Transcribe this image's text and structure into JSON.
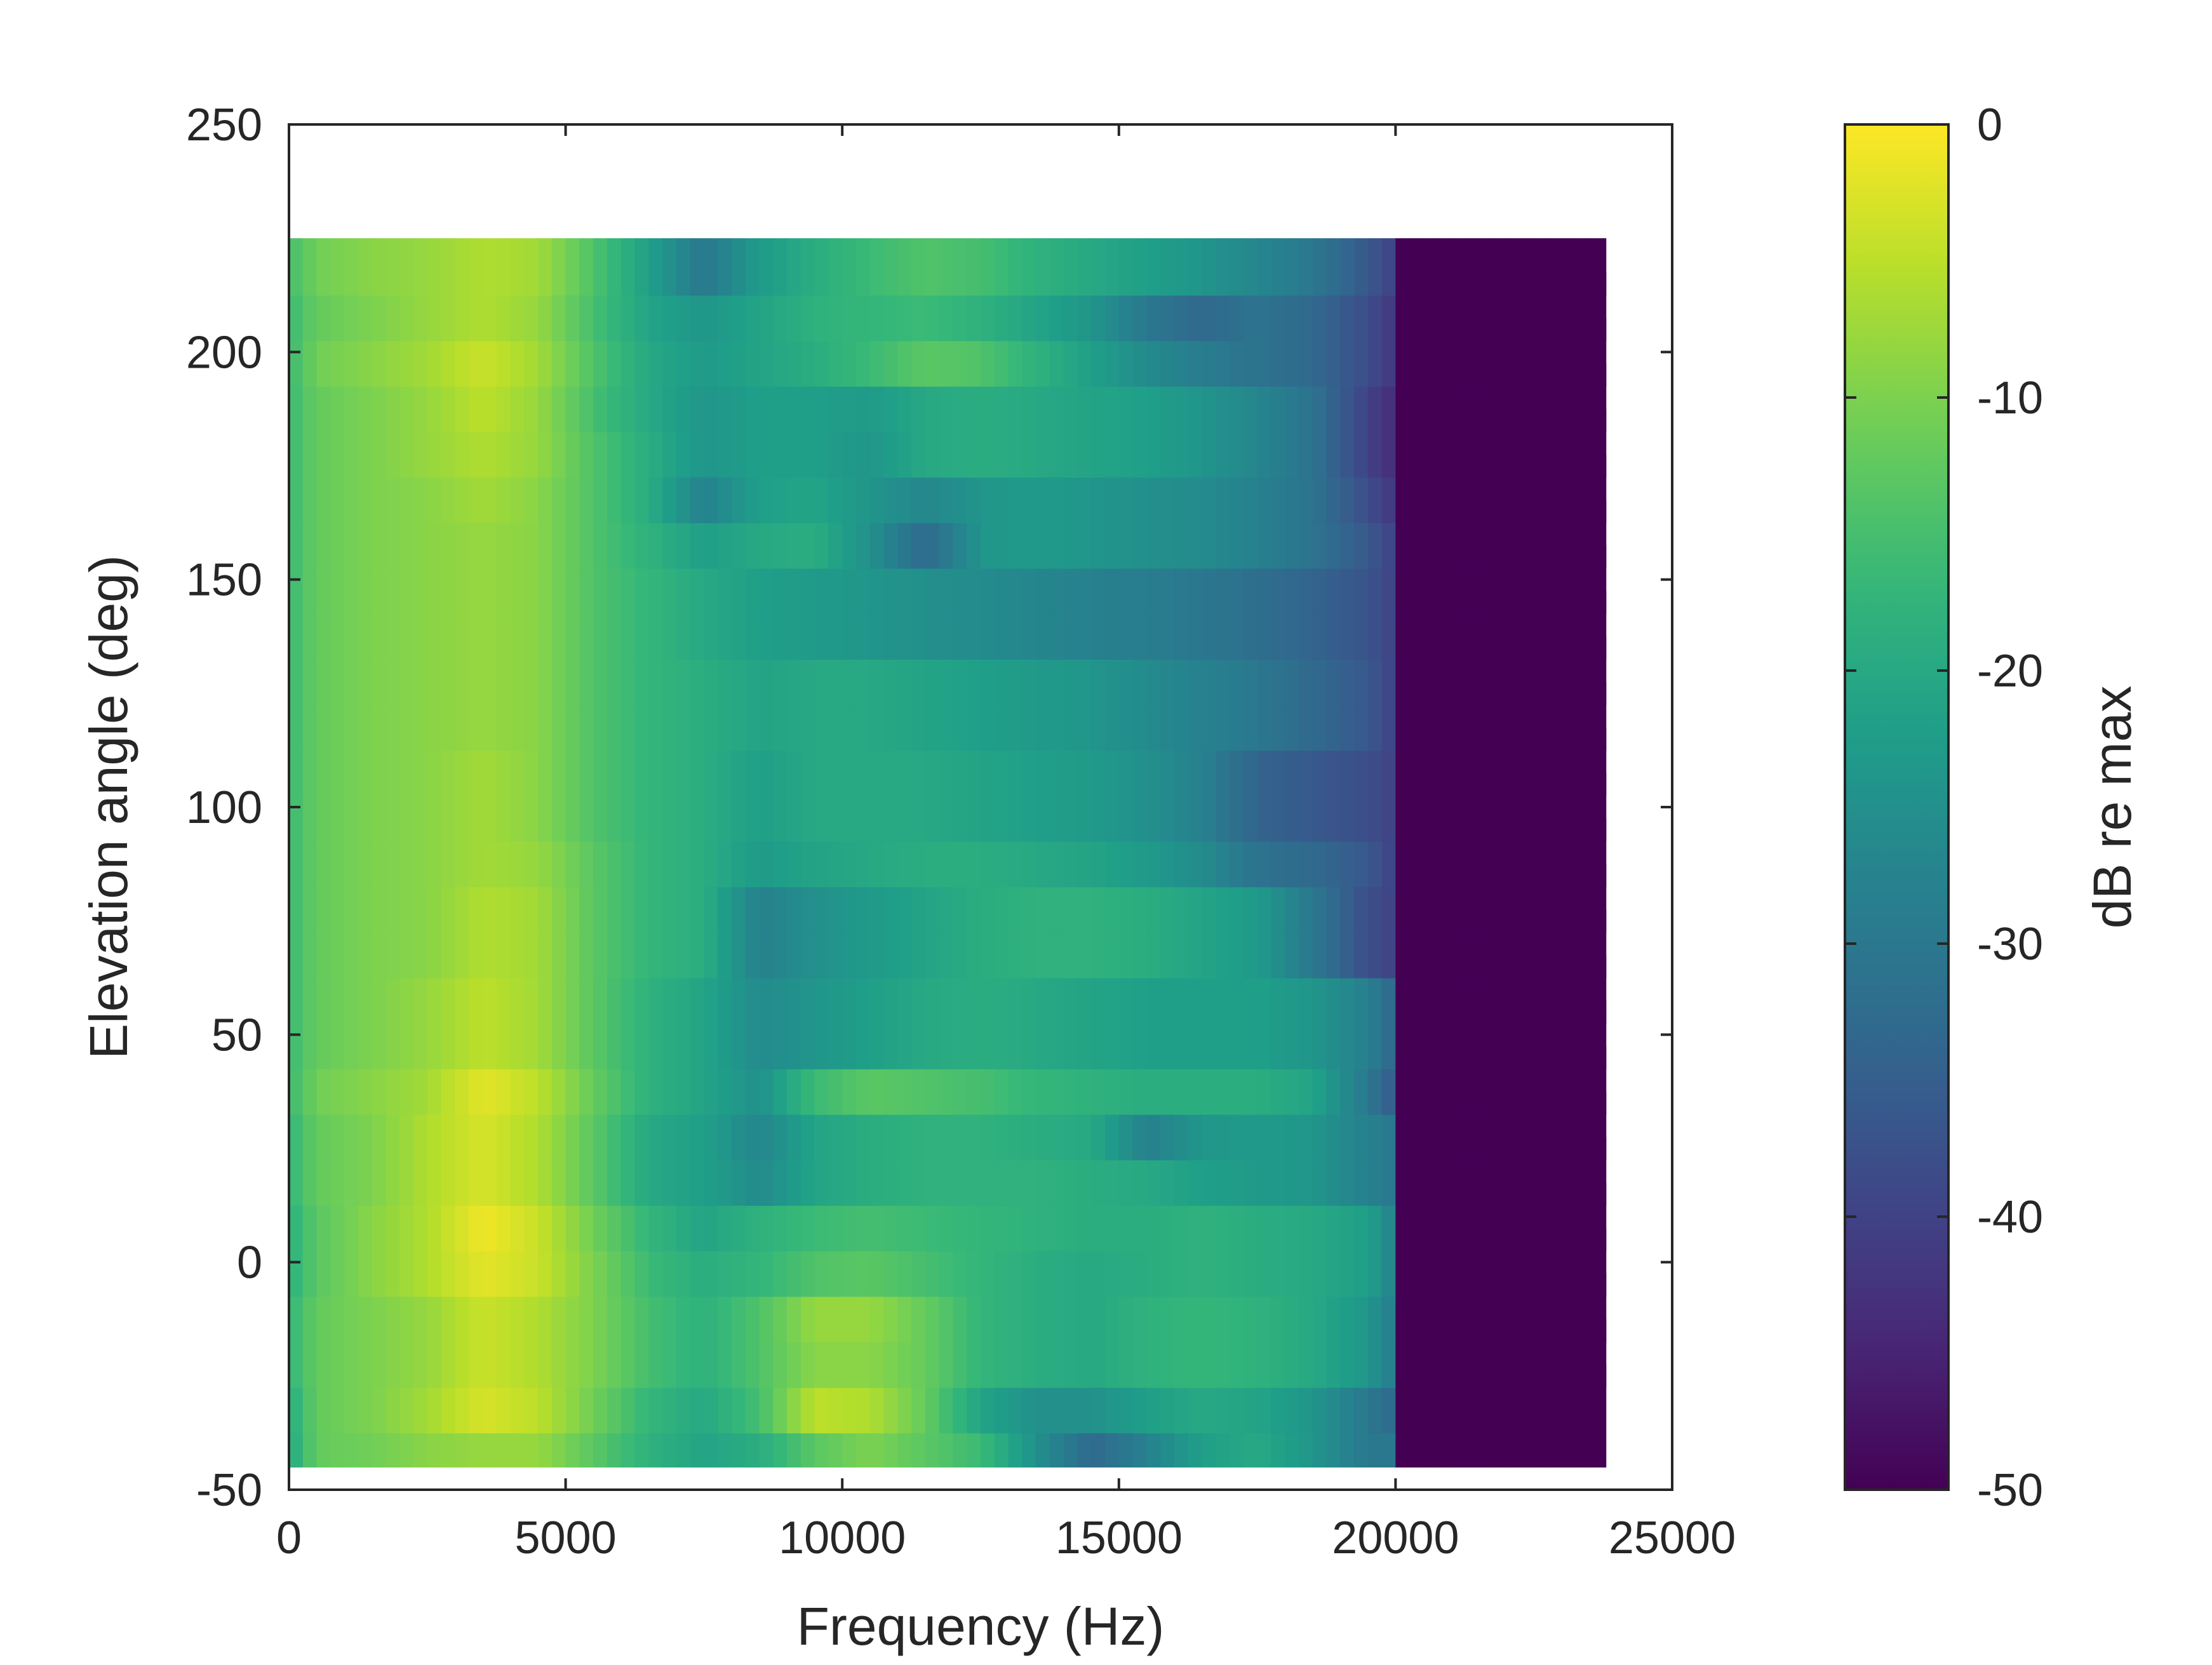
{
  "chart_data": {
    "type": "heatmap",
    "title": "",
    "xlabel": "Frequency (Hz)",
    "ylabel": "Elevation angle (deg)",
    "xlim": [
      0,
      25000
    ],
    "ylim": [
      -50,
      250
    ],
    "xticks": [
      0,
      5000,
      10000,
      15000,
      20000,
      25000
    ],
    "xtick_labels": [
      "0",
      "5000",
      "10000",
      "15000",
      "20000",
      "25000"
    ],
    "yticks": [
      -50,
      0,
      50,
      100,
      150,
      200,
      250
    ],
    "ytick_labels": [
      "-50",
      "0",
      "50",
      "100",
      "150",
      "200",
      "250"
    ],
    "colormap": "viridis",
    "colorbar": {
      "label": "dB re max",
      "clim": [
        -50,
        0
      ],
      "ticks": [
        -50,
        -40,
        -30,
        -20,
        -10,
        0
      ],
      "tick_labels": [
        "-50",
        "-40",
        "-30",
        "-20",
        "-10",
        "0"
      ]
    },
    "data_extent": {
      "x": [
        0,
        23800
      ],
      "y": [
        -45,
        225
      ]
    },
    "grid": false,
    "frequency_knots_hz": [
      0,
      500,
      1500,
      2500,
      3500,
      4500,
      5500,
      6500,
      7500,
      8500,
      9500,
      10500,
      11500,
      12500,
      13500,
      14500,
      15500,
      16500,
      17500,
      18500,
      19500,
      20000,
      20100
    ],
    "rows": [
      {
        "elevation_deg": -45,
        "db": [
          -20,
          -12,
          -11,
          -9,
          -8,
          -8,
          -13,
          -18,
          -21,
          -19,
          -13,
          -10,
          -13,
          -16,
          -25,
          -33,
          -28,
          -22,
          -20,
          -24,
          -30,
          -30,
          -50
        ]
      },
      {
        "elevation_deg": -30,
        "db": [
          -19,
          -12,
          -10,
          -7,
          -3,
          -5,
          -11,
          -17,
          -20,
          -15,
          -5,
          -6,
          -12,
          -21,
          -25,
          -25,
          -22,
          -20,
          -21,
          -24,
          -30,
          -33,
          -50
        ]
      },
      {
        "elevation_deg": -20,
        "db": [
          -17,
          -12,
          -10,
          -8,
          -4,
          -6,
          -10,
          -15,
          -18,
          -14,
          -9,
          -9,
          -12,
          -17,
          -19,
          -20,
          -18,
          -17,
          -18,
          -20,
          -24,
          -29,
          -50
        ]
      },
      {
        "elevation_deg": -10,
        "db": [
          -17,
          -12,
          -10,
          -8,
          -4,
          -6,
          -10,
          -15,
          -18,
          -14,
          -8,
          -8,
          -12,
          -17,
          -19,
          -20,
          -18,
          -17,
          -18,
          -20,
          -24,
          -29,
          -50
        ]
      },
      {
        "elevation_deg": 0,
        "db": [
          -18,
          -13,
          -9,
          -6,
          -2,
          -4,
          -10,
          -16,
          -19,
          -17,
          -14,
          -13,
          -15,
          -17,
          -19,
          -20,
          -19,
          -18,
          -19,
          -20,
          -22,
          -28,
          -50
        ]
      },
      {
        "elevation_deg": 10,
        "db": [
          -18,
          -13,
          -9,
          -6,
          -1,
          -4,
          -11,
          -17,
          -21,
          -18,
          -16,
          -15,
          -16,
          -17,
          -18,
          -19,
          -19,
          -18,
          -19,
          -20,
          -22,
          -28,
          -50
        ]
      },
      {
        "elevation_deg": 20,
        "db": [
          -17,
          -12,
          -10,
          -6,
          -3,
          -6,
          -13,
          -20,
          -22,
          -26,
          -21,
          -19,
          -18,
          -18,
          -18,
          -19,
          -20,
          -22,
          -23,
          -24,
          -28,
          -30,
          -50
        ]
      },
      {
        "elevation_deg": 30,
        "db": [
          -17,
          -12,
          -10,
          -6,
          -3,
          -6,
          -13,
          -20,
          -22,
          -27,
          -21,
          -19,
          -18,
          -18,
          -19,
          -20,
          -28,
          -24,
          -23,
          -24,
          -28,
          -30,
          -50
        ]
      },
      {
        "elevation_deg": 40,
        "db": [
          -16,
          -11,
          -9,
          -7,
          -2,
          -5,
          -12,
          -18,
          -21,
          -25,
          -16,
          -13,
          -14,
          -15,
          -17,
          -18,
          -19,
          -19,
          -19,
          -21,
          -30,
          -36,
          -50
        ]
      },
      {
        "elevation_deg": 50,
        "db": [
          -16,
          -12,
          -10,
          -8,
          -5,
          -7,
          -13,
          -18,
          -21,
          -26,
          -24,
          -22,
          -20,
          -19,
          -20,
          -21,
          -22,
          -22,
          -22,
          -24,
          -28,
          -34,
          -50
        ]
      },
      {
        "elevation_deg": 60,
        "db": [
          -16,
          -12,
          -10,
          -8,
          -5,
          -7,
          -13,
          -18,
          -21,
          -26,
          -24,
          -22,
          -20,
          -19,
          -20,
          -21,
          -22,
          -22,
          -22,
          -24,
          -28,
          -34,
          -50
        ]
      },
      {
        "elevation_deg": 70,
        "db": [
          -16,
          -12,
          -10,
          -9,
          -6,
          -7,
          -13,
          -17,
          -19,
          -28,
          -25,
          -23,
          -21,
          -19,
          -18,
          -18,
          -19,
          -21,
          -23,
          -30,
          -38,
          -40,
          -50
        ]
      },
      {
        "elevation_deg": 80,
        "db": [
          -16,
          -12,
          -10,
          -9,
          -6,
          -7,
          -13,
          -17,
          -19,
          -28,
          -25,
          -23,
          -21,
          -19,
          -18,
          -18,
          -19,
          -21,
          -23,
          -30,
          -38,
          -40,
          -50
        ]
      },
      {
        "elevation_deg": 90,
        "db": [
          -16,
          -12,
          -10,
          -9,
          -7,
          -8,
          -13,
          -17,
          -19,
          -23,
          -21,
          -20,
          -19,
          -19,
          -20,
          -21,
          -23,
          -26,
          -31,
          -33,
          -36,
          -40,
          -50
        ]
      },
      {
        "elevation_deg": 100,
        "db": [
          -16,
          -12,
          -10,
          -9,
          -7,
          -9,
          -14,
          -17,
          -19,
          -22,
          -20,
          -20,
          -20,
          -21,
          -22,
          -23,
          -25,
          -28,
          -34,
          -36,
          -38,
          -40,
          -50
        ]
      },
      {
        "elevation_deg": 110,
        "db": [
          -16,
          -12,
          -10,
          -9,
          -7,
          -9,
          -14,
          -17,
          -19,
          -22,
          -20,
          -20,
          -20,
          -21,
          -22,
          -23,
          -25,
          -28,
          -34,
          -36,
          -38,
          -40,
          -50
        ]
      },
      {
        "elevation_deg": 120,
        "db": [
          -16,
          -12,
          -10,
          -9,
          -8,
          -9,
          -14,
          -17,
          -19,
          -21,
          -20,
          -20,
          -21,
          -22,
          -23,
          -24,
          -26,
          -28,
          -30,
          -33,
          -36,
          -40,
          -50
        ]
      },
      {
        "elevation_deg": 130,
        "db": [
          -16,
          -12,
          -10,
          -9,
          -8,
          -9,
          -14,
          -17,
          -19,
          -21,
          -20,
          -20,
          -21,
          -22,
          -23,
          -24,
          -26,
          -28,
          -30,
          -33,
          -36,
          -40,
          -50
        ]
      },
      {
        "elevation_deg": 140,
        "db": [
          -16,
          -12,
          -10,
          -9,
          -8,
          -9,
          -14,
          -17,
          -20,
          -22,
          -23,
          -24,
          -25,
          -26,
          -27,
          -28,
          -29,
          -30,
          -32,
          -34,
          -37,
          -40,
          -50
        ]
      },
      {
        "elevation_deg": 150,
        "db": [
          -16,
          -12,
          -10,
          -9,
          -8,
          -9,
          -14,
          -17,
          -20,
          -22,
          -23,
          -24,
          -25,
          -26,
          -27,
          -28,
          -29,
          -30,
          -32,
          -34,
          -37,
          -40,
          -50
        ]
      },
      {
        "elevation_deg": 160,
        "db": [
          -16,
          -12,
          -10,
          -9,
          -8,
          -9,
          -14,
          -18,
          -22,
          -20,
          -19,
          -25,
          -33,
          -24,
          -23,
          -24,
          -25,
          -26,
          -28,
          -31,
          -36,
          -40,
          -50
        ]
      },
      {
        "elevation_deg": 170,
        "db": [
          -16,
          -12,
          -10,
          -9,
          -7,
          -9,
          -14,
          -19,
          -28,
          -22,
          -21,
          -24,
          -27,
          -24,
          -23,
          -24,
          -25,
          -26,
          -28,
          -31,
          -38,
          -42,
          -50
        ]
      },
      {
        "elevation_deg": 180,
        "db": [
          -16,
          -12,
          -10,
          -8,
          -6,
          -8,
          -14,
          -19,
          -24,
          -22,
          -22,
          -24,
          -20,
          -19,
          -20,
          -21,
          -22,
          -24,
          -27,
          -31,
          -40,
          -44,
          -50
        ]
      },
      {
        "elevation_deg": 190,
        "db": [
          -16,
          -12,
          -10,
          -8,
          -5,
          -8,
          -15,
          -20,
          -24,
          -22,
          -22,
          -23,
          -20,
          -19,
          -20,
          -21,
          -22,
          -24,
          -27,
          -31,
          -40,
          -44,
          -50
        ]
      },
      {
        "elevation_deg": 200,
        "db": [
          -16,
          -11,
          -9,
          -7,
          -4,
          -7,
          -14,
          -20,
          -23,
          -21,
          -19,
          -16,
          -13,
          -14,
          -18,
          -22,
          -26,
          -29,
          -31,
          -33,
          -38,
          -42,
          -50
        ]
      },
      {
        "elevation_deg": 210,
        "db": [
          -16,
          -12,
          -10,
          -8,
          -6,
          -8,
          -15,
          -21,
          -24,
          -21,
          -18,
          -17,
          -16,
          -18,
          -21,
          -24,
          -30,
          -33,
          -31,
          -33,
          -38,
          -42,
          -50
        ]
      },
      {
        "elevation_deg": 220,
        "db": [
          -15,
          -11,
          -9,
          -8,
          -6,
          -7,
          -14,
          -22,
          -30,
          -23,
          -19,
          -16,
          -14,
          -15,
          -18,
          -20,
          -22,
          -24,
          -27,
          -30,
          -36,
          -40,
          -50
        ]
      }
    ]
  }
}
